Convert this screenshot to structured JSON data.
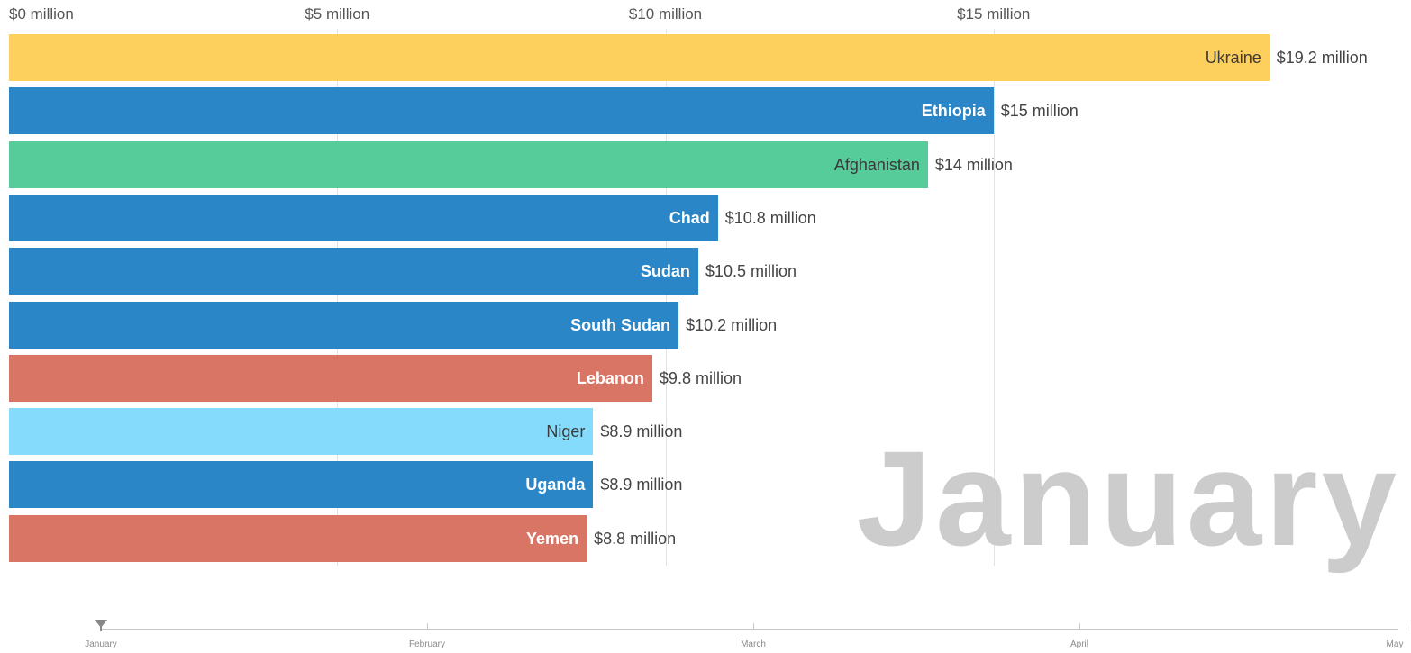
{
  "chart_data": {
    "type": "bar",
    "orientation": "horizontal",
    "period": "January",
    "xlim": [
      0,
      20
    ],
    "x_ticks": [
      {
        "value": 0,
        "label": "$0 million"
      },
      {
        "value": 5,
        "label": "$5 million"
      },
      {
        "value": 10,
        "label": "$10 million"
      },
      {
        "value": 15,
        "label": "$15 million"
      }
    ],
    "categories": [
      "Ukraine",
      "Ethiopia",
      "Afghanistan",
      "Chad",
      "Sudan",
      "South Sudan",
      "Lebanon",
      "Niger",
      "Uganda",
      "Yemen"
    ],
    "values": [
      19.2,
      15,
      14,
      10.8,
      10.5,
      10.2,
      9.8,
      8.9,
      8.9,
      8.8
    ],
    "value_labels": [
      "$19.2 million",
      "$15 million",
      "$14 million",
      "$10.8 million",
      "$10.5 million",
      "$10.2 million",
      "$9.8 million",
      "$8.9 million",
      "$8.9 million",
      "$8.8 million"
    ],
    "bar_colors": [
      "#fdd05d",
      "#2a86c7",
      "#55cc9a",
      "#2a86c7",
      "#2a86c7",
      "#2a86c7",
      "#d97565",
      "#84dbfb",
      "#2a86c7",
      "#d97565"
    ],
    "name_colors": [
      "#3a3a3a",
      "#ffffff",
      "#3a3a3a",
      "#ffffff",
      "#ffffff",
      "#ffffff",
      "#ffffff",
      "#3a3a3a",
      "#ffffff",
      "#ffffff"
    ],
    "grid": true
  },
  "timeline": {
    "labels": [
      "January",
      "February",
      "March",
      "April",
      "May"
    ],
    "current": "January"
  }
}
